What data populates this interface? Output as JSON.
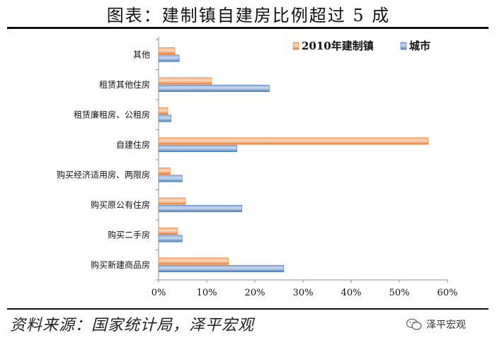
{
  "title": "图表：建制镇自建房比例超过 5 成",
  "source": "资料来源：国家统计局，泽平宏观",
  "watermark": "泽平宏观",
  "colors": {
    "series_town": "#ED7D31",
    "series_town_light": "#F8C9A6",
    "series_city": "#4A7EBB",
    "series_city_light": "#B9CDE5"
  },
  "chart_data": {
    "type": "bar",
    "orientation": "horizontal",
    "categories": [
      "其他",
      "租赁其他住房",
      "租赁廉租房、公租房",
      "自建住房",
      "购买经济适用房、两限房",
      "购买原公有住房",
      "购买二手房",
      "购买新建商品房"
    ],
    "series": [
      {
        "name": "2010年建制镇",
        "values": [
          3.4,
          11.0,
          1.9,
          56.0,
          2.4,
          5.6,
          3.9,
          14.5
        ]
      },
      {
        "name": "城市",
        "values": [
          4.3,
          23.0,
          2.6,
          16.3,
          4.9,
          17.3,
          4.9,
          26.0
        ]
      }
    ],
    "xlim": [
      0,
      60
    ],
    "xticks": [
      0,
      10,
      20,
      30,
      40,
      50,
      60
    ],
    "tick_format": "percent",
    "legend_position": "top-right",
    "grid": false,
    "xlabel": "",
    "ylabel": ""
  }
}
